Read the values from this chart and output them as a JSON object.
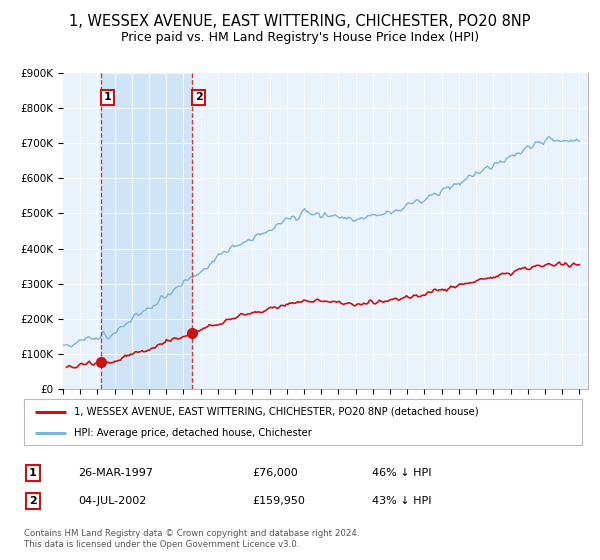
{
  "title": "1, WESSEX AVENUE, EAST WITTERING, CHICHESTER, PO20 8NP",
  "subtitle": "Price paid vs. HM Land Registry's House Price Index (HPI)",
  "title_fontsize": 10.5,
  "subtitle_fontsize": 9,
  "background_color": "#ffffff",
  "plot_bg_color": "#eaf2fb",
  "shade_color": "#d0e4f7",
  "ylim": [
    0,
    900000
  ],
  "yticks": [
    0,
    100000,
    200000,
    300000,
    400000,
    500000,
    600000,
    700000,
    800000,
    900000
  ],
  "ytick_labels": [
    "£0",
    "£100K",
    "£200K",
    "£300K",
    "£400K",
    "£500K",
    "£600K",
    "£700K",
    "£800K",
    "£900K"
  ],
  "hpi_color": "#7ab4d8",
  "price_color": "#cc1111",
  "sale1_date": 1997.23,
  "sale1_price": 76000,
  "sale1_label": "1",
  "sale1_text": "26-MAR-1997",
  "sale1_amount": "£76,000",
  "sale1_pct": "46% ↓ HPI",
  "sale2_date": 2002.51,
  "sale2_price": 159950,
  "sale2_label": "2",
  "sale2_text": "04-JUL-2002",
  "sale2_amount": "£159,950",
  "sale2_pct": "43% ↓ HPI",
  "legend_line1": "1, WESSEX AVENUE, EAST WITTERING, CHICHESTER, PO20 8NP (detached house)",
  "legend_line2": "HPI: Average price, detached house, Chichester",
  "footnote": "Contains HM Land Registry data © Crown copyright and database right 2024.\nThis data is licensed under the Open Government Licence v3.0.",
  "xmin": 1995.0,
  "xmax": 2025.5
}
